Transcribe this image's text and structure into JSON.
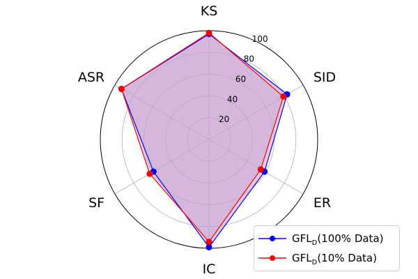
{
  "chart_data": {
    "type": "radar",
    "axes": [
      "KS",
      "SID",
      "ER",
      "IC",
      "SF",
      "ASR"
    ],
    "rlim": [
      0,
      100
    ],
    "rticks": [
      20,
      40,
      60,
      80,
      100
    ],
    "rtick_labels": [
      "20",
      "40",
      "60",
      "80",
      "100"
    ],
    "grid": true,
    "legend_placement": "lower-right",
    "series": [
      {
        "name": "GFL_D(100% Data)",
        "name_base": "GFL",
        "name_sub": "D",
        "name_rest": "(100% Data)",
        "color": "#0000ff",
        "values": [
          97,
          83,
          59,
          99,
          59,
          93
        ]
      },
      {
        "name": "GFL_D(10% Data)",
        "name_base": "GFL",
        "name_sub": "D",
        "name_rest": "(10% Data)",
        "color": "#ff0000",
        "values": [
          98,
          79,
          55,
          94,
          63,
          93
        ]
      }
    ],
    "fill_color": "#c8a0cf"
  }
}
